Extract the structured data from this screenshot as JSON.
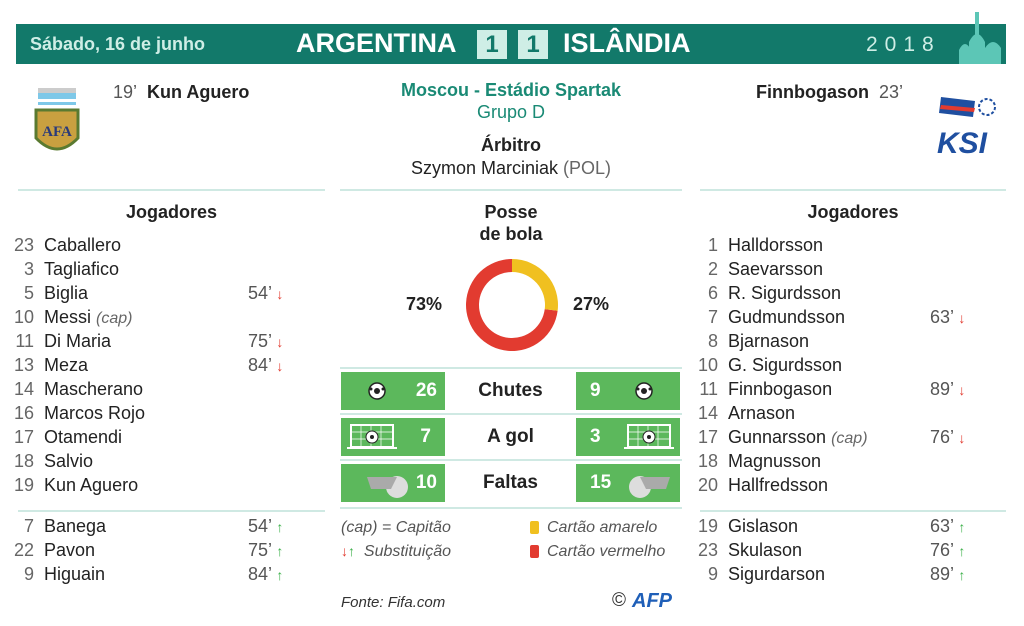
{
  "header": {
    "date": "Sábado, 16 de junho",
    "team_a": "ARGENTINA",
    "score_a": "1",
    "score_b": "1",
    "team_b": "ISLÂNDIA",
    "year": "2018"
  },
  "goals": {
    "a": {
      "minute": "19’",
      "player": "Kun Aguero"
    },
    "b": {
      "player": "Finnbogason",
      "minute": "23’"
    }
  },
  "venue": {
    "location": "Moscou - Estádio Spartak",
    "group": "Grupo D",
    "referee_label": "Árbitro",
    "referee": "Szymon Marciniak",
    "referee_country": "(POL)"
  },
  "players_label": "Jogadores",
  "team_a_players": [
    {
      "n": "23",
      "name": "Caballero"
    },
    {
      "n": "3",
      "name": "Tagliafico"
    },
    {
      "n": "5",
      "name": "Biglia",
      "sub": "54’",
      "dir": "down"
    },
    {
      "n": "10",
      "name": "Messi",
      "cap": "(cap)"
    },
    {
      "n": "11",
      "name": "Di Maria",
      "sub": "75’",
      "dir": "down"
    },
    {
      "n": "13",
      "name": "Meza",
      "sub": "84’",
      "dir": "down"
    },
    {
      "n": "14",
      "name": "Mascherano"
    },
    {
      "n": "16",
      "name": "Marcos Rojo"
    },
    {
      "n": "17",
      "name": "Otamendi"
    },
    {
      "n": "18",
      "name": "Salvio"
    },
    {
      "n": "19",
      "name": "Kun Aguero"
    }
  ],
  "team_a_subs": [
    {
      "n": "7",
      "name": "Banega",
      "sub": "54’",
      "dir": "up"
    },
    {
      "n": "22",
      "name": "Pavon",
      "sub": "75’",
      "dir": "up"
    },
    {
      "n": "9",
      "name": "Higuain",
      "sub": "84’",
      "dir": "up"
    }
  ],
  "team_b_players": [
    {
      "n": "1",
      "name": "Halldorsson"
    },
    {
      "n": "2",
      "name": "Saevarsson"
    },
    {
      "n": "6",
      "name": "R. Sigurdsson"
    },
    {
      "n": "7",
      "name": "Gudmundsson",
      "sub": "63’",
      "dir": "down"
    },
    {
      "n": "8",
      "name": "Bjarnason"
    },
    {
      "n": "10",
      "name": "G. Sigurdsson"
    },
    {
      "n": "11",
      "name": "Finnbogason",
      "sub": "89’",
      "dir": "down"
    },
    {
      "n": "14",
      "name": "Arnason"
    },
    {
      "n": "17",
      "name": "Gunnarsson",
      "cap": "(cap)",
      "sub": "76’",
      "dir": "down"
    },
    {
      "n": "18",
      "name": "Magnusson"
    },
    {
      "n": "20",
      "name": "Hallfredsson"
    }
  ],
  "team_b_subs": [
    {
      "n": "19",
      "name": "Gislason",
      "sub": "63’",
      "dir": "up"
    },
    {
      "n": "23",
      "name": "Skulason",
      "sub": "76’",
      "dir": "up"
    },
    {
      "n": "9",
      "name": "Sigurdarson",
      "sub": "89’",
      "dir": "up"
    }
  ],
  "possession": {
    "label_1": "Posse",
    "label_2": "de bola",
    "a": "73%",
    "b": "27%"
  },
  "chart_data": {
    "type": "pie",
    "values": [
      73,
      27
    ],
    "colors": [
      "#e23b30",
      "#f0c020"
    ]
  },
  "stats": [
    {
      "label": "Chutes",
      "a": "26",
      "b": "9",
      "icon": "soccer-ball-icon"
    },
    {
      "label": "A gol",
      "a": "7",
      "b": "3",
      "icon": "goal-net-icon"
    },
    {
      "label": "Faltas",
      "a": "10",
      "b": "15",
      "icon": "whistle-icon"
    }
  ],
  "legend": {
    "cap": "(cap) = Capitão",
    "sub": "Substituição",
    "yellow": "Cartão amarelo",
    "red": "Cartão vermelho"
  },
  "source": "Fonte: Fifa.com",
  "credit": "©",
  "credit_logo": "AFP",
  "colors": {
    "header": "#12796a",
    "stat_box": "#5cb85c",
    "down": "#e23b30",
    "up": "#3cb04a",
    "yellow": "#f0c020",
    "red": "#e23b30"
  }
}
